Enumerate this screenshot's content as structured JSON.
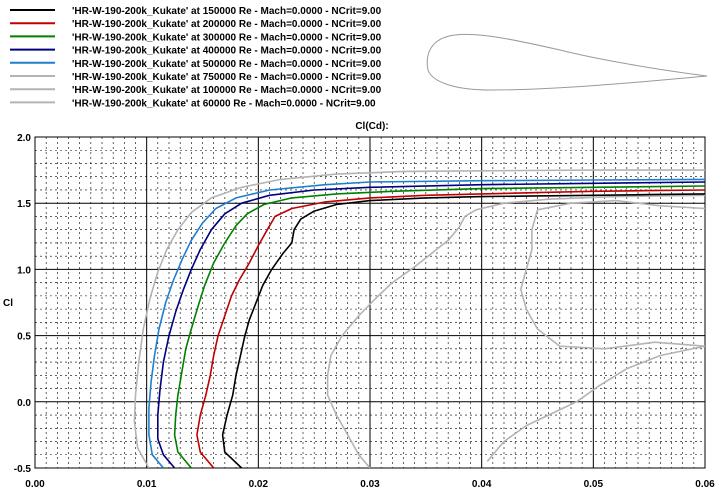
{
  "chart_data": {
    "type": "line",
    "title": "Cl(Cd):",
    "xlabel": "",
    "ylabel": "Cl",
    "xlim": [
      0.0,
      0.06
    ],
    "ylim": [
      -0.5,
      2.0
    ],
    "x_ticks": [
      "0.00",
      "0.01",
      "0.02",
      "0.03",
      "0.04",
      "0.05",
      "0.06"
    ],
    "y_ticks": [
      "2.0",
      "1.5",
      "1.0",
      "0.5",
      "0.0",
      "-0.5"
    ],
    "grid": true,
    "legend_position": "top-left",
    "series": [
      {
        "name": "'HR-W-190-200k_Kukate' at 150000 Re - Mach=0.0000 - NCrit=9.00",
        "color": "#000000",
        "points": [
          [
            0.0185,
            -0.5
          ],
          [
            0.017,
            -0.38
          ],
          [
            0.0168,
            -0.25
          ],
          [
            0.0172,
            -0.1
          ],
          [
            0.0177,
            0.05
          ],
          [
            0.018,
            0.2
          ],
          [
            0.0184,
            0.35
          ],
          [
            0.0188,
            0.5
          ],
          [
            0.0192,
            0.62
          ],
          [
            0.0198,
            0.75
          ],
          [
            0.0204,
            0.88
          ],
          [
            0.0212,
            1.0
          ],
          [
            0.0222,
            1.12
          ],
          [
            0.023,
            1.2
          ],
          [
            0.0232,
            1.3
          ],
          [
            0.0238,
            1.38
          ],
          [
            0.025,
            1.44
          ],
          [
            0.027,
            1.49
          ],
          [
            0.03,
            1.52
          ],
          [
            0.035,
            1.54
          ],
          [
            0.04,
            1.55
          ],
          [
            0.045,
            1.555
          ],
          [
            0.05,
            1.56
          ],
          [
            0.055,
            1.565
          ],
          [
            0.06,
            1.57
          ]
        ]
      },
      {
        "name": "'HR-W-190-200k_Kukate' at 200000 Re - Mach=0.0000 - NCrit=9.00",
        "color": "#c00000",
        "points": [
          [
            0.016,
            -0.5
          ],
          [
            0.0148,
            -0.38
          ],
          [
            0.0145,
            -0.25
          ],
          [
            0.0148,
            -0.1
          ],
          [
            0.0153,
            0.05
          ],
          [
            0.0157,
            0.2
          ],
          [
            0.016,
            0.35
          ],
          [
            0.0164,
            0.5
          ],
          [
            0.017,
            0.65
          ],
          [
            0.0176,
            0.8
          ],
          [
            0.0183,
            0.92
          ],
          [
            0.0192,
            1.05
          ],
          [
            0.02,
            1.18
          ],
          [
            0.0208,
            1.3
          ],
          [
            0.0215,
            1.4
          ],
          [
            0.023,
            1.46
          ],
          [
            0.026,
            1.51
          ],
          [
            0.03,
            1.54
          ],
          [
            0.035,
            1.56
          ],
          [
            0.04,
            1.57
          ],
          [
            0.045,
            1.58
          ],
          [
            0.05,
            1.59
          ],
          [
            0.055,
            1.595
          ],
          [
            0.06,
            1.6
          ]
        ]
      },
      {
        "name": "'HR-W-190-200k_Kukate' at 300000 Re - Mach=0.0000 - NCrit=9.00",
        "color": "#008000",
        "points": [
          [
            0.014,
            -0.5
          ],
          [
            0.0128,
            -0.38
          ],
          [
            0.0125,
            -0.25
          ],
          [
            0.0126,
            -0.1
          ],
          [
            0.0128,
            0.05
          ],
          [
            0.0131,
            0.2
          ],
          [
            0.0135,
            0.4
          ],
          [
            0.014,
            0.55
          ],
          [
            0.0146,
            0.72
          ],
          [
            0.0152,
            0.88
          ],
          [
            0.016,
            1.05
          ],
          [
            0.017,
            1.2
          ],
          [
            0.018,
            1.33
          ],
          [
            0.019,
            1.42
          ],
          [
            0.0205,
            1.49
          ],
          [
            0.023,
            1.54
          ],
          [
            0.027,
            1.57
          ],
          [
            0.032,
            1.59
          ],
          [
            0.04,
            1.61
          ],
          [
            0.05,
            1.62
          ],
          [
            0.06,
            1.63
          ]
        ]
      },
      {
        "name": "'HR-W-190-200k_Kukate' at 400000 Re - Mach=0.0000 - NCrit=9.00",
        "color": "#000080",
        "points": [
          [
            0.0125,
            -0.5
          ],
          [
            0.0115,
            -0.4
          ],
          [
            0.011,
            -0.28
          ],
          [
            0.011,
            -0.1
          ],
          [
            0.0112,
            0.1
          ],
          [
            0.0115,
            0.3
          ],
          [
            0.012,
            0.5
          ],
          [
            0.0126,
            0.68
          ],
          [
            0.0133,
            0.85
          ],
          [
            0.014,
            1.0
          ],
          [
            0.0148,
            1.15
          ],
          [
            0.0158,
            1.3
          ],
          [
            0.017,
            1.42
          ],
          [
            0.0185,
            1.5
          ],
          [
            0.021,
            1.56
          ],
          [
            0.025,
            1.6
          ],
          [
            0.03,
            1.62
          ],
          [
            0.04,
            1.64
          ],
          [
            0.05,
            1.65
          ],
          [
            0.06,
            1.66
          ]
        ]
      },
      {
        "name": "'HR-W-190-200k_Kukate' at 500000 Re - Mach=0.0000 - NCrit=9.00",
        "color": "#1f7fcf",
        "points": [
          [
            0.0115,
            -0.5
          ],
          [
            0.0105,
            -0.4
          ],
          [
            0.0102,
            -0.25
          ],
          [
            0.0102,
            -0.05
          ],
          [
            0.0104,
            0.15
          ],
          [
            0.0107,
            0.35
          ],
          [
            0.0111,
            0.55
          ],
          [
            0.0117,
            0.75
          ],
          [
            0.0124,
            0.92
          ],
          [
            0.0132,
            1.08
          ],
          [
            0.014,
            1.22
          ],
          [
            0.015,
            1.35
          ],
          [
            0.0162,
            1.46
          ],
          [
            0.018,
            1.54
          ],
          [
            0.021,
            1.6
          ],
          [
            0.026,
            1.64
          ],
          [
            0.03,
            1.66
          ],
          [
            0.04,
            1.67
          ],
          [
            0.05,
            1.675
          ],
          [
            0.06,
            1.68
          ]
        ]
      },
      {
        "name": "'HR-W-190-200k_Kukate' at 750000 Re - Mach=0.0000 - NCrit=9.00",
        "color": "#b4b4b4",
        "points": [
          [
            0.0102,
            -0.5
          ],
          [
            0.0092,
            -0.35
          ],
          [
            0.0089,
            -0.15
          ],
          [
            0.009,
            0.05
          ],
          [
            0.0093,
            0.3
          ],
          [
            0.0097,
            0.55
          ],
          [
            0.0103,
            0.78
          ],
          [
            0.011,
            0.98
          ],
          [
            0.0118,
            1.15
          ],
          [
            0.0128,
            1.3
          ],
          [
            0.014,
            1.43
          ],
          [
            0.0158,
            1.54
          ],
          [
            0.0185,
            1.62
          ],
          [
            0.022,
            1.68
          ],
          [
            0.027,
            1.72
          ],
          [
            0.033,
            1.74
          ],
          [
            0.04,
            1.745
          ],
          [
            0.05,
            1.75
          ],
          [
            0.06,
            1.75
          ]
        ]
      },
      {
        "name": "'HR-W-190-200k_Kukate' at 100000 Re - Mach=0.0000 - NCrit=9.00",
        "color": "#b4b4b4",
        "points": [
          [
            0.0405,
            -0.45
          ],
          [
            0.042,
            -0.3
          ],
          [
            0.044,
            -0.18
          ],
          [
            0.046,
            -0.1
          ],
          [
            0.0485,
            0.0
          ],
          [
            0.0505,
            0.12
          ],
          [
            0.053,
            0.25
          ],
          [
            0.056,
            0.35
          ],
          [
            0.06,
            0.42
          ],
          [
            0.0555,
            0.45
          ],
          [
            0.051,
            0.4
          ],
          [
            0.047,
            0.42
          ],
          [
            0.045,
            0.55
          ],
          [
            0.044,
            0.7
          ],
          [
            0.0435,
            0.85
          ],
          [
            0.044,
            1.0
          ],
          [
            0.0445,
            1.15
          ],
          [
            0.0445,
            1.3
          ],
          [
            0.045,
            1.45
          ],
          [
            0.048,
            1.5
          ],
          [
            0.052,
            1.52
          ],
          [
            0.056,
            1.48
          ],
          [
            0.06,
            1.46
          ]
        ]
      },
      {
        "name": "'HR-W-190-200k_Kukate' at 60000 Re - Mach=0.0000 - NCrit=9.00",
        "color": "#b4b4b4",
        "points": [
          [
            0.03,
            -0.5
          ],
          [
            0.029,
            -0.4
          ],
          [
            0.028,
            -0.25
          ],
          [
            0.027,
            -0.1
          ],
          [
            0.0262,
            0.05
          ],
          [
            0.0262,
            0.2
          ],
          [
            0.0265,
            0.35
          ],
          [
            0.0275,
            0.5
          ],
          [
            0.029,
            0.65
          ],
          [
            0.0305,
            0.78
          ],
          [
            0.032,
            0.9
          ],
          [
            0.034,
            1.02
          ],
          [
            0.0355,
            1.12
          ],
          [
            0.037,
            1.22
          ],
          [
            0.038,
            1.32
          ],
          [
            0.0385,
            1.4
          ],
          [
            0.0395,
            1.45
          ],
          [
            0.042,
            1.5
          ],
          [
            0.046,
            1.53
          ],
          [
            0.052,
            1.55
          ],
          [
            0.06,
            1.56
          ]
        ]
      }
    ]
  }
}
